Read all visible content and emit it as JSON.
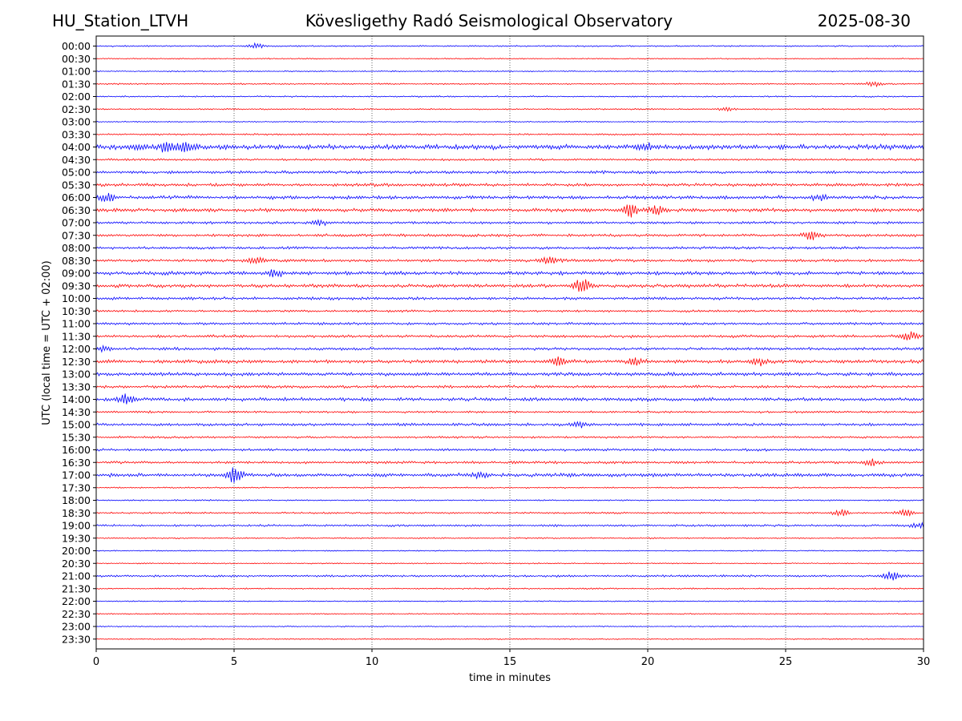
{
  "header": {
    "station": "HU_Station_LTVH",
    "title": "Kövesligethy Radó Seismological Observatory",
    "date": "2025-08-30"
  },
  "chart_data": {
    "type": "line",
    "title": "Kövesligethy Radó Seismological Observatory",
    "xlabel": "time in minutes",
    "ylabel": "UTC (local time = UTC + 02:00)",
    "xlim": [
      0,
      30
    ],
    "x_ticks": [
      0,
      5,
      10,
      15,
      20,
      25,
      30
    ],
    "grid": "vertical dotted lines at 5-minute intervals",
    "trace_colors": [
      "#0000ff",
      "#ff0000"
    ],
    "trace_labels": [
      "00:00",
      "00:30",
      "01:00",
      "01:30",
      "02:00",
      "02:30",
      "03:00",
      "03:30",
      "04:00",
      "04:30",
      "05:00",
      "05:30",
      "06:00",
      "06:30",
      "07:00",
      "07:30",
      "08:00",
      "08:30",
      "09:00",
      "09:30",
      "10:00",
      "10:30",
      "11:00",
      "11:30",
      "12:00",
      "12:30",
      "13:00",
      "13:30",
      "14:00",
      "14:30",
      "15:00",
      "15:30",
      "16:00",
      "16:30",
      "17:00",
      "17:30",
      "18:00",
      "18:30",
      "19:00",
      "19:30",
      "20:00",
      "20:30",
      "21:00",
      "21:30",
      "22:00",
      "22:30",
      "23:00",
      "23:30"
    ],
    "trace_noise": [
      1,
      0.8,
      0.8,
      1,
      1,
      1,
      0.8,
      1.2,
      3.5,
      1.5,
      2,
      2.2,
      2.5,
      2.5,
      1.8,
      2,
      1.8,
      2,
      2.5,
      2.5,
      2,
      1.6,
      1.8,
      2,
      2,
      2.5,
      2.5,
      2,
      2.5,
      1.5,
      2,
      1.5,
      1.8,
      1.8,
      2.5,
      1,
      1,
      1.2,
      1.5,
      1,
      0.8,
      0.8,
      1.5,
      1,
      0.8,
      0.8,
      0.8,
      0.8
    ],
    "events": [
      {
        "trace": "00:00",
        "minute": 5.8,
        "amp": 3
      },
      {
        "trace": "01:30",
        "minute": 28.2,
        "amp": 3
      },
      {
        "trace": "02:30",
        "minute": 22.8,
        "amp": 2.5
      },
      {
        "trace": "04:00",
        "minute": 1.5,
        "amp": 5
      },
      {
        "trace": "04:00",
        "minute": 2.6,
        "amp": 6
      },
      {
        "trace": "04:00",
        "minute": 3.3,
        "amp": 6
      },
      {
        "trace": "04:00",
        "minute": 19.9,
        "amp": 4
      },
      {
        "trace": "06:00",
        "minute": 0.4,
        "amp": 4
      },
      {
        "trace": "06:00",
        "minute": 26.2,
        "amp": 3
      },
      {
        "trace": "06:30",
        "minute": 19.4,
        "amp": 8
      },
      {
        "trace": "06:30",
        "minute": 20.3,
        "amp": 5
      },
      {
        "trace": "07:00",
        "minute": 8.1,
        "amp": 3
      },
      {
        "trace": "07:30",
        "minute": 25.9,
        "amp": 6
      },
      {
        "trace": "08:30",
        "minute": 5.8,
        "amp": 4
      },
      {
        "trace": "08:30",
        "minute": 16.4,
        "amp": 5
      },
      {
        "trace": "09:00",
        "minute": 6.5,
        "amp": 4
      },
      {
        "trace": "09:30",
        "minute": 17.6,
        "amp": 8
      },
      {
        "trace": "11:30",
        "minute": 29.5,
        "amp": 5
      },
      {
        "trace": "12:00",
        "minute": 0.3,
        "amp": 4
      },
      {
        "trace": "12:30",
        "minute": 16.8,
        "amp": 5
      },
      {
        "trace": "12:30",
        "minute": 19.6,
        "amp": 4
      },
      {
        "trace": "12:30",
        "minute": 24.0,
        "amp": 5
      },
      {
        "trace": "14:00",
        "minute": 1.1,
        "amp": 7
      },
      {
        "trace": "15:00",
        "minute": 17.5,
        "amp": 3
      },
      {
        "trace": "16:30",
        "minute": 28.1,
        "amp": 5
      },
      {
        "trace": "17:00",
        "minute": 5.0,
        "amp": 10
      },
      {
        "trace": "17:00",
        "minute": 13.9,
        "amp": 3
      },
      {
        "trace": "18:30",
        "minute": 27.0,
        "amp": 4
      },
      {
        "trace": "18:30",
        "minute": 29.3,
        "amp": 4
      },
      {
        "trace": "19:00",
        "minute": 29.8,
        "amp": 3
      },
      {
        "trace": "21:00",
        "minute": 28.8,
        "amp": 6
      }
    ]
  }
}
